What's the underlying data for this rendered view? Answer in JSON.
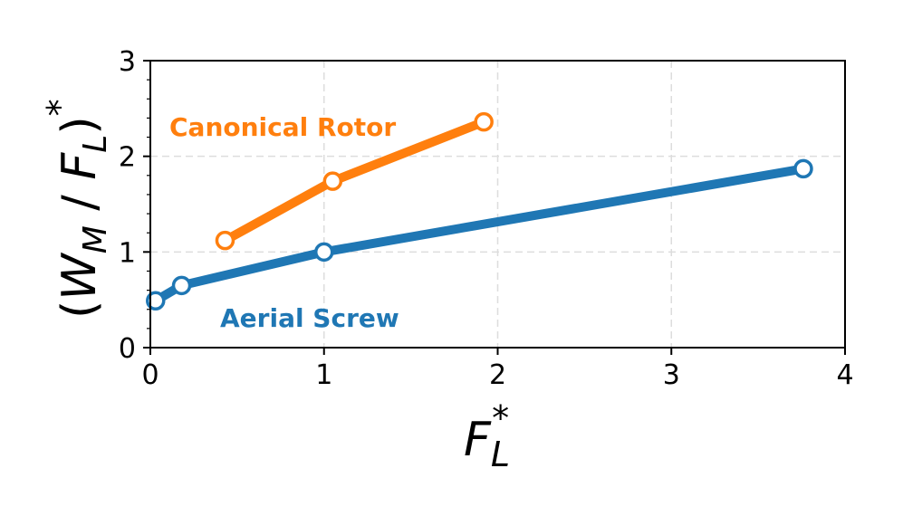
{
  "chart_data": {
    "type": "line",
    "xlabel": {
      "base": "F",
      "sub": "L",
      "sup": "*"
    },
    "ylabel": {
      "open": "(",
      "w": "W",
      "w_sub": "M",
      "slash": " / ",
      "f": "F",
      "f_sub": "L",
      "close": ")",
      "sup": "*"
    },
    "xlim": [
      0,
      4
    ],
    "ylim": [
      0,
      3
    ],
    "xticks": [
      0,
      1,
      2,
      3,
      4
    ],
    "yticks": [
      0,
      1,
      2,
      3
    ],
    "xtick_labels": [
      "0",
      "1",
      "2",
      "3",
      "4"
    ],
    "ytick_labels": [
      "0",
      "1",
      "2",
      "3"
    ],
    "grid": true,
    "series": [
      {
        "name": "Canonical Rotor",
        "color": "#ff7f0e",
        "x": [
          0.43,
          1.05,
          1.92
        ],
        "y": [
          1.12,
          1.74,
          2.36
        ]
      },
      {
        "name": "Aerial Screw",
        "color": "#1f77b4",
        "x": [
          0.03,
          0.18,
          1.0,
          3.76
        ],
        "y": [
          0.49,
          0.65,
          1.0,
          1.87
        ]
      }
    ]
  }
}
